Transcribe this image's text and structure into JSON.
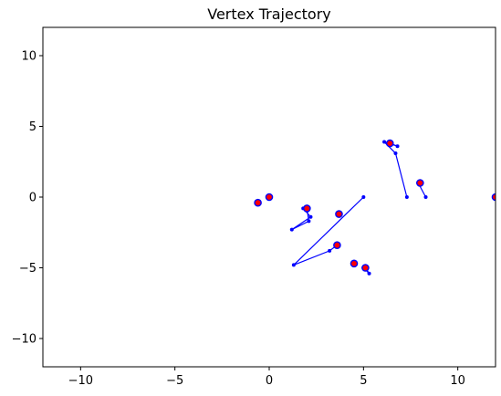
{
  "chart_data": {
    "type": "scatter",
    "title": "Vertex Trajectory",
    "xlabel": "",
    "ylabel": "",
    "xlim": [
      -12,
      12
    ],
    "ylim": [
      -12,
      12
    ],
    "xticks": [
      -10,
      -5,
      0,
      5,
      10
    ],
    "yticks": [
      -10,
      -5,
      0,
      5,
      10
    ],
    "grid": false,
    "colors": {
      "endpoint": "#ff0000",
      "trajectory": "#0000ff",
      "axes": "#000000"
    },
    "endpoints": [
      {
        "x": -0.6,
        "y": -0.4
      },
      {
        "x": 0.0,
        "y": 0.0
      },
      {
        "x": 2.0,
        "y": -0.8
      },
      {
        "x": 3.7,
        "y": -1.2
      },
      {
        "x": 3.6,
        "y": -3.4
      },
      {
        "x": 4.5,
        "y": -4.7
      },
      {
        "x": 5.1,
        "y": -5.0
      },
      {
        "x": 6.4,
        "y": 3.8
      },
      {
        "x": 8.0,
        "y": 1.0
      },
      {
        "x": 12.0,
        "y": 0.0
      }
    ],
    "trajectories": [
      {
        "points": [
          {
            "x": -0.6,
            "y": -0.4
          },
          {
            "x": -0.6,
            "y": -0.4
          }
        ]
      },
      {
        "points": [
          {
            "x": 0.0,
            "y": 0.0
          },
          {
            "x": 0.0,
            "y": 0.0
          }
        ]
      },
      {
        "points": [
          {
            "x": 5.0,
            "y": 0.0
          },
          {
            "x": 1.3,
            "y": -4.8
          },
          {
            "x": 3.2,
            "y": -3.8
          },
          {
            "x": 3.6,
            "y": -3.4
          }
        ]
      },
      {
        "points": [
          {
            "x": 1.8,
            "y": -0.8
          },
          {
            "x": 2.2,
            "y": -1.4
          },
          {
            "x": 1.2,
            "y": -2.3
          },
          {
            "x": 2.1,
            "y": -1.7
          },
          {
            "x": 2.0,
            "y": -0.8
          }
        ]
      },
      {
        "points": [
          {
            "x": 3.7,
            "y": -1.2
          },
          {
            "x": 3.7,
            "y": -1.2
          }
        ]
      },
      {
        "points": [
          {
            "x": 4.5,
            "y": -4.7
          },
          {
            "x": 4.5,
            "y": -4.7
          }
        ]
      },
      {
        "points": [
          {
            "x": 5.0,
            "y": -5.0
          },
          {
            "x": 5.3,
            "y": -5.4
          },
          {
            "x": 5.1,
            "y": -5.0
          }
        ]
      },
      {
        "points": [
          {
            "x": 7.3,
            "y": 0.0
          },
          {
            "x": 6.7,
            "y": 3.1
          },
          {
            "x": 6.1,
            "y": 3.9
          },
          {
            "x": 6.8,
            "y": 3.6
          },
          {
            "x": 6.4,
            "y": 3.8
          }
        ]
      },
      {
        "points": [
          {
            "x": 8.3,
            "y": 0.0
          },
          {
            "x": 7.9,
            "y": 1.0
          },
          {
            "x": 8.0,
            "y": 1.0
          }
        ]
      },
      {
        "points": [
          {
            "x": 12.0,
            "y": 0.0
          },
          {
            "x": 12.0,
            "y": 0.0
          }
        ]
      }
    ]
  }
}
